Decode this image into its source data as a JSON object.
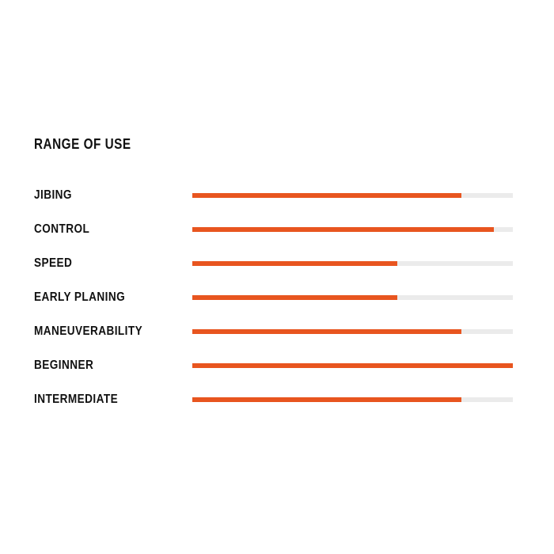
{
  "page": {
    "background": "#FFFFFF"
  },
  "chart_data": {
    "type": "bar",
    "orientation": "horizontal",
    "title": "RANGE OF USE",
    "categories": [
      "JIBING",
      "CONTROL",
      "SPEED",
      "EARLY PLANING",
      "MANEUVERABILITY",
      "BEGINNER",
      "INTERMEDIATE"
    ],
    "values": [
      84,
      94,
      64,
      64,
      84,
      100,
      84
    ],
    "value_unit": "percent of full track",
    "xlim": [
      0,
      100
    ],
    "grid": false,
    "legend": false,
    "data_labels": false,
    "axis_tick_labels": [],
    "colors": {
      "bar_fill": "#E8551F",
      "bar_track": "#EBEBEB",
      "text": "#111111"
    }
  }
}
